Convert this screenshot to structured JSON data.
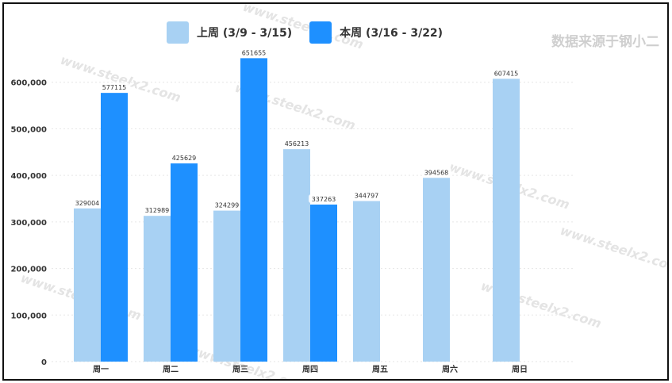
{
  "source_text": "数据来源于钢小二",
  "watermark": "www.steelx2.com",
  "chart_data": {
    "type": "bar",
    "categories": [
      "周一",
      "周二",
      "周三",
      "周四",
      "周五",
      "周六",
      "周日"
    ],
    "series": [
      {
        "name": "上周 (3/9 - 3/15)",
        "color": "#a8d1f3",
        "values": [
          329004,
          312989,
          324299,
          456213,
          344797,
          394568,
          607415
        ]
      },
      {
        "name": "本周 (3/16 - 3/22)",
        "color": "#1e90ff",
        "values": [
          577115,
          425629,
          651655,
          337263,
          null,
          null,
          null
        ]
      }
    ],
    "ylim": [
      0,
      700000
    ],
    "yticks": [
      0,
      100000,
      200000,
      300000,
      400000,
      500000,
      600000
    ],
    "ytick_labels": [
      "0",
      "100,000",
      "200,000",
      "300,000",
      "400,000",
      "500,000",
      "600,000"
    ],
    "grid": true,
    "legend_position": "top-center"
  }
}
